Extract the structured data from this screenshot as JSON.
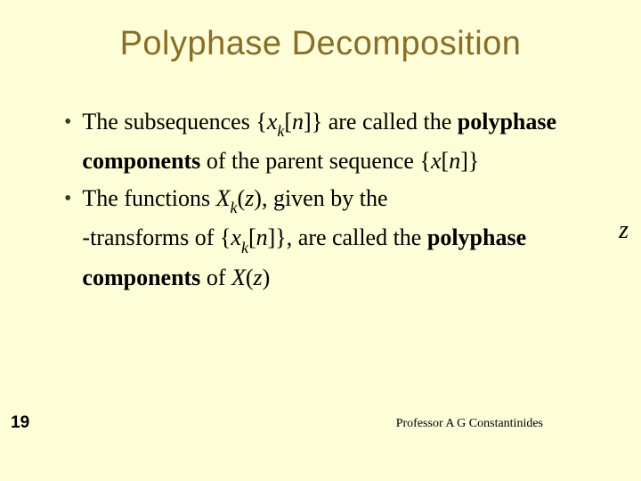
{
  "background_color": "#fdfdd7",
  "title": {
    "text": "Polyphase Decomposition",
    "color": "#8a6d26",
    "fontsize": 38,
    "font_family": "Arial"
  },
  "bullets": [
    {
      "pre": "The subsequences ",
      "math_var": "x",
      "math_sub": "k",
      "math_arg": "n",
      "mid": " are called the ",
      "bold": "polyphase components",
      "post1": " of the parent sequence {",
      "seq_var": "x",
      "seq_arg": "n",
      "post2": "}"
    },
    {
      "pre": "The functions ",
      "func_var": "X",
      "func_sub": "k",
      "func_arg": "z",
      "mid1": ", given by the ",
      "mid2": "-transforms of ",
      "math_var": "x",
      "math_sub": "k",
      "math_arg": "n",
      "mid3": ", are called the ",
      "bold": "polyphase components",
      "post1": " of ",
      "parent_var": "X",
      "parent_arg": "z"
    }
  ],
  "right_side_char": "z",
  "slide_number": "19",
  "footer": "Professor A G Constantinides",
  "body_fontsize": 26,
  "body_line_height": 36,
  "bullet_marker": "•"
}
